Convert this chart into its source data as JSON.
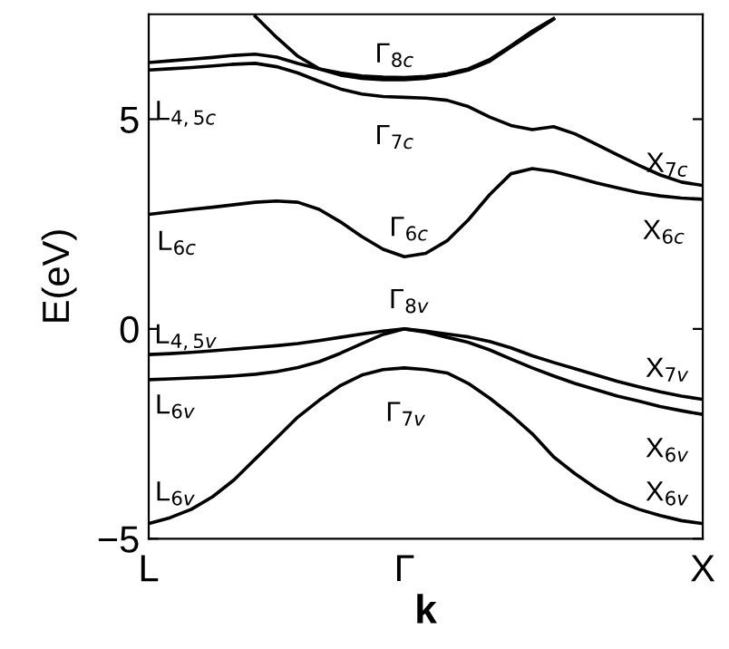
{
  "chart_data": {
    "type": "line",
    "xlabel": "k",
    "ylabel": "E(eV)",
    "ylim": [
      -5,
      7.5
    ],
    "categories": [
      "L",
      null,
      null,
      null,
      null,
      null,
      null,
      null,
      null,
      null,
      null,
      null,
      "Γ",
      null,
      null,
      null,
      null,
      null,
      null,
      null,
      null,
      null,
      null,
      null,
      null,
      null,
      "X"
    ],
    "yticks": [
      {
        "value": -5,
        "label": "−5"
      },
      0,
      5
    ],
    "grid": false,
    "legend": false,
    "marker": "none",
    "line_style": "solid",
    "series": [
      {
        "color": "#000000",
        "values": [
          -0.61,
          -0.59,
          -0.56,
          -0.52,
          -0.48,
          -0.44,
          -0.4,
          -0.35,
          -0.28,
          -0.2,
          -0.12,
          -0.05,
          0,
          -0.05,
          -0.12,
          -0.19,
          -0.3,
          -0.45,
          -0.64,
          -0.8,
          -0.95,
          -1.1,
          -1.25,
          -1.38,
          -1.5,
          -1.6,
          -1.68
        ]
      },
      {
        "color": "#000000",
        "values": [
          -1.21,
          -1.19,
          -1.17,
          -1.15,
          -1.12,
          -1.08,
          -1.02,
          -0.92,
          -0.78,
          -0.58,
          -0.35,
          -0.13,
          0,
          -0.08,
          -0.2,
          -0.32,
          -0.5,
          -0.72,
          -0.93,
          -1.12,
          -1.3,
          -1.45,
          -1.6,
          -1.72,
          -1.85,
          -1.95,
          -2.04
        ]
      },
      {
        "color": "#000000",
        "values": [
          -4.64,
          -4.5,
          -4.3,
          -4.0,
          -3.6,
          -3.1,
          -2.6,
          -2.1,
          -1.7,
          -1.35,
          -1.1,
          -0.97,
          -0.93,
          -0.97,
          -1.05,
          -1.3,
          -1.65,
          -2.05,
          -2.5,
          -3.05,
          -3.45,
          -3.8,
          -4.1,
          -4.3,
          -4.45,
          -4.57,
          -4.64
        ]
      },
      {
        "color": "#000000",
        "values": [
          2.73,
          2.79,
          2.85,
          2.9,
          2.96,
          3.02,
          3.05,
          3.02,
          2.85,
          2.55,
          2.2,
          1.9,
          1.72,
          1.8,
          2.1,
          2.6,
          3.2,
          3.7,
          3.82,
          3.75,
          3.62,
          3.48,
          3.36,
          3.25,
          3.17,
          3.12,
          3.09
        ]
      },
      {
        "color": "#000000",
        "values": [
          6.17,
          6.2,
          6.23,
          6.27,
          6.31,
          6.33,
          6.25,
          6.1,
          5.9,
          5.72,
          5.6,
          5.54,
          5.52,
          5.5,
          5.45,
          5.3,
          5.05,
          4.85,
          4.75,
          4.82,
          4.65,
          4.4,
          4.15,
          3.9,
          3.67,
          3.5,
          3.42
        ]
      },
      {
        "color": "#000000",
        "values": [
          6.35,
          6.39,
          6.43,
          6.47,
          6.52,
          6.55,
          6.48,
          6.33,
          6.2,
          6.1,
          6.03,
          6.0,
          5.99,
          6.02,
          6.08,
          6.2,
          6.42,
          6.75,
          7.1,
          7.4,
          null,
          null,
          null,
          null,
          null,
          null,
          null
        ]
      },
      {
        "color": "#000000",
        "values": [
          null,
          null,
          null,
          null,
          null,
          7.45,
          6.95,
          6.5,
          6.2,
          6.05,
          5.97,
          5.94,
          5.94,
          5.97,
          6.05,
          6.17,
          6.38,
          6.72,
          7.05,
          7.38,
          null,
          null,
          null,
          null,
          null,
          null,
          null
        ]
      }
    ],
    "annotations": [
      "Γ$_{8c}$",
      "L$_{4,5c}$",
      "Γ$_{7c}$",
      "X$_{7c}$",
      "L$_{6c}$",
      "Γ$_{6c}$",
      "X$_{6c}$",
      "Γ$_{8v}$",
      "L$_{4,5v}$",
      "X$_{7v}$",
      "L$_{6v}$",
      "Γ$_{7v}$",
      "X$_{6v}$",
      "L$_{6v}$",
      "X$_{6v}$"
    ]
  }
}
